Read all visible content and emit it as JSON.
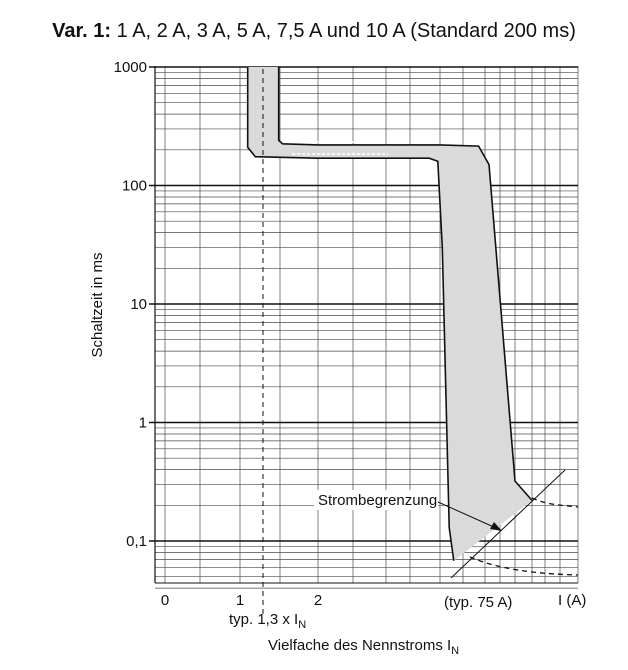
{
  "chart_data": {
    "type": "line",
    "title_bold": "Var. 1:",
    "title_rest": " 1 A, 2 A, 3 A, 5 A, 7,5 A und 10 A (Standard 200 ms)",
    "ylabel": "Schaltzeit in ms",
    "xlabel_main": "Vielfache des Nennstroms I",
    "xlabel_sub": "N",
    "x_unit_label": "I (A)",
    "y_scale": "log",
    "ylim": [
      0.04,
      1000
    ],
    "y_ticks": [
      {
        "value": 1000,
        "label": "1000"
      },
      {
        "value": 100,
        "label": "100"
      },
      {
        "value": 10,
        "label": "10"
      },
      {
        "value": 1,
        "label": "1"
      },
      {
        "value": 0.1,
        "label": "0,1"
      }
    ],
    "x_ticks": [
      {
        "value": 0,
        "label": "0"
      },
      {
        "value": 1,
        "label": "1"
      },
      {
        "value": 2,
        "label": "2"
      }
    ],
    "grid": true,
    "annotations": {
      "typ_marker": {
        "x": 1.3,
        "label_main": "typ. 1,3 x I",
        "label_sub": "N"
      },
      "typ_current": "(typ. 75 A)",
      "strombegrenzung": "Strombegrenzung"
    },
    "band": {
      "name": "",
      "upper": [
        {
          "x": 1.5,
          "y": 1000
        },
        {
          "x": 1.5,
          "y": 240
        },
        {
          "x": 1.55,
          "y": 225
        },
        {
          "x": 2.0,
          "y": 220
        },
        {
          "x": 3.5,
          "y": 220
        },
        {
          "x": 4.15,
          "y": 215
        },
        {
          "x": 4.25,
          "y": 150
        },
        {
          "x": 4.5,
          "y": 0.32
        },
        {
          "x": 4.6,
          "y": 0.22
        }
      ],
      "lower": [
        {
          "x": 1.1,
          "y": 1000
        },
        {
          "x": 1.1,
          "y": 210
        },
        {
          "x": 1.2,
          "y": 175
        },
        {
          "x": 2.0,
          "y": 170
        },
        {
          "x": 3.4,
          "y": 170
        },
        {
          "x": 3.48,
          "y": 160
        },
        {
          "x": 3.55,
          "y": 30
        },
        {
          "x": 3.7,
          "y": 0.13
        },
        {
          "x": 3.8,
          "y": 0.068
        }
      ]
    }
  }
}
